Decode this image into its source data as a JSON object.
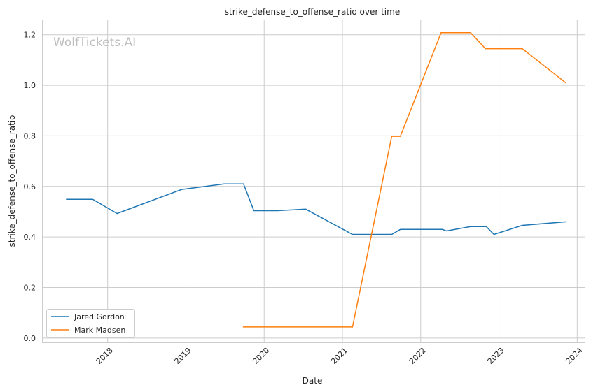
{
  "watermark": "WolfTickets.AI",
  "chart_data": {
    "type": "line",
    "title": "strike_defense_to_offense_ratio over time",
    "xlabel": "Date",
    "ylabel": "strike_defense_to_offense_ratio",
    "xlim": [
      "2017-03-01",
      "2024-02-05"
    ],
    "ylim": [
      -0.017,
      1.26
    ],
    "x_ticks": [
      "2018",
      "2019",
      "2020",
      "2021",
      "2022",
      "2023",
      "2024"
    ],
    "y_ticks": [
      "0.0",
      "0.2",
      "0.4",
      "0.6",
      "0.8",
      "1.0",
      "1.2"
    ],
    "grid": true,
    "legend_position": "bottom-left",
    "series": [
      {
        "name": "Jared Gordon",
        "color": "#1f77b4",
        "x": [
          "2017-06-21",
          "2017-10-23",
          "2018-02-14",
          "2018-12-13",
          "2019-06-28",
          "2019-09-27",
          "2019-11-14",
          "2020-03-03",
          "2020-07-13",
          "2021-02-17",
          "2021-08-19",
          "2021-09-28",
          "2022-04-13",
          "2022-05-01",
          "2022-08-22",
          "2022-11-03",
          "2022-12-09",
          "2023-04-20",
          "2023-11-10"
        ],
        "y": [
          0.549,
          0.549,
          0.493,
          0.588,
          0.61,
          0.61,
          0.504,
          0.504,
          0.51,
          0.41,
          0.41,
          0.43,
          0.43,
          0.424,
          0.441,
          0.441,
          0.41,
          0.446,
          0.46
        ]
      },
      {
        "name": "Mark Madsen",
        "color": "#ff7f0e",
        "x": [
          "2019-09-24",
          "2021-02-17",
          "2021-08-19",
          "2021-09-28",
          "2022-04-06",
          "2022-08-22",
          "2022-10-30",
          "2023-04-20",
          "2023-11-10"
        ],
        "y": [
          0.044,
          0.044,
          0.798,
          0.798,
          1.208,
          1.208,
          1.145,
          1.145,
          1.009
        ]
      }
    ]
  }
}
